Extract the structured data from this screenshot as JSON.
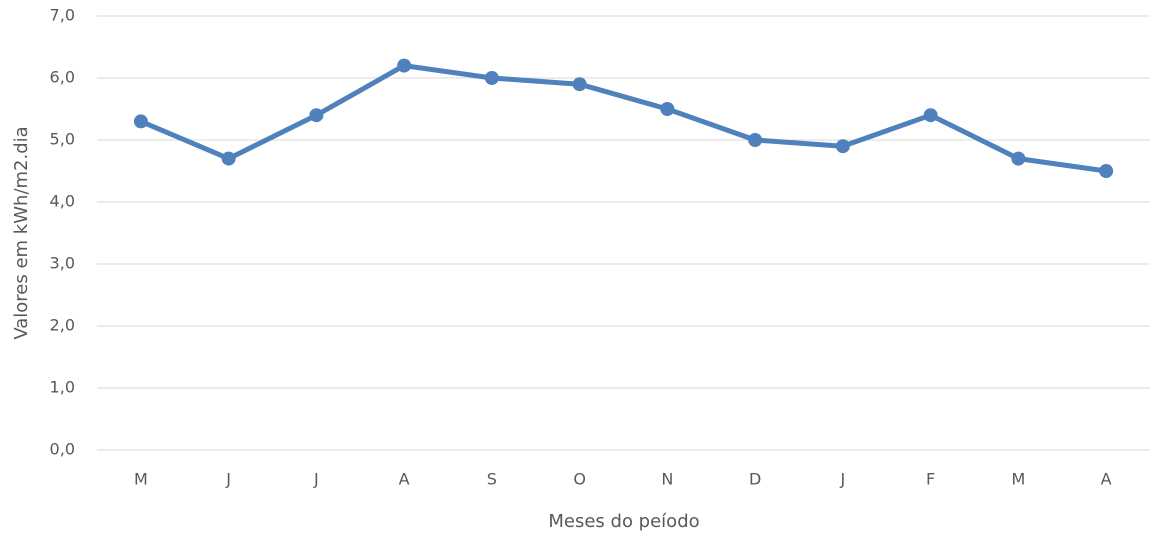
{
  "chart_data": {
    "type": "line",
    "x_label": "Meses do peíodo",
    "y_label": "Valores em  kWh/m2.dia",
    "categories": [
      "M",
      "J",
      "J",
      "A",
      "S",
      "O",
      "N",
      "D",
      "J",
      "F",
      "M",
      "A"
    ],
    "values": [
      5.3,
      4.7,
      5.4,
      6.2,
      6.0,
      5.9,
      5.5,
      5.0,
      4.9,
      5.4,
      4.7,
      4.5
    ],
    "color": "#4f81bd",
    "ylim": [
      0,
      7
    ],
    "yticks": [
      {
        "value": 0,
        "label": "0,0"
      },
      {
        "value": 1,
        "label": "1,0"
      },
      {
        "value": 2,
        "label": "2,0"
      },
      {
        "value": 3,
        "label": "3,0"
      },
      {
        "value": 4,
        "label": "4,0"
      },
      {
        "value": 5,
        "label": "5,0"
      },
      {
        "value": 6,
        "label": "6,0"
      },
      {
        "value": 7,
        "label": "7,0"
      }
    ],
    "grid": true
  }
}
